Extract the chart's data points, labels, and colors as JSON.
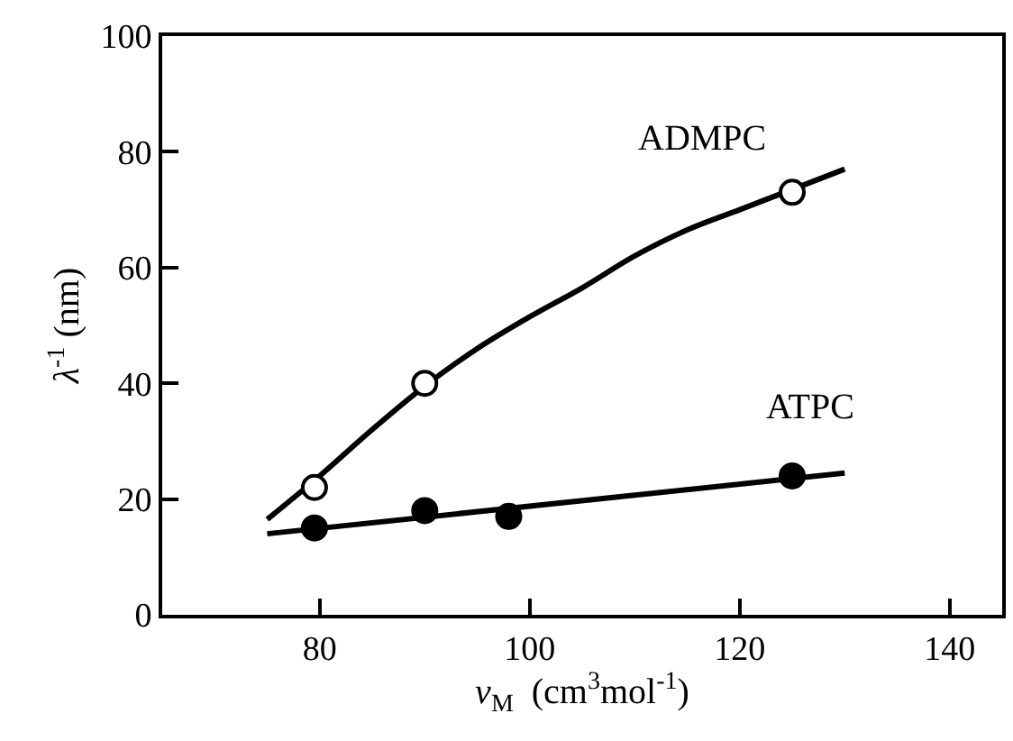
{
  "chart_data": {
    "type": "scatter",
    "xlabel": "v$_{M}$  (cm$^{3}$mol$^{-1}$)",
    "ylabel": "λ$^{-1}$ (nm)",
    "xlim": [
      65,
      145
    ],
    "xticks": [
      80,
      100,
      120,
      140
    ],
    "ylim": [
      0,
      100
    ],
    "yticks": [
      0,
      20,
      40,
      60,
      80,
      100
    ],
    "legend": false,
    "series": [
      {
        "type": "line",
        "marker": "none",
        "color": "#000000",
        "x": [
          75,
          80,
          85,
          90,
          95,
          100,
          105,
          110,
          115,
          120,
          125,
          130
        ],
        "values": [
          16.5,
          24,
          32,
          39.5,
          46,
          51.5,
          56.5,
          62,
          66.5,
          70,
          73.5,
          77
        ]
      },
      {
        "type": "line",
        "marker": "none",
        "color": "#000000",
        "x": [
          75,
          130
        ],
        "values": [
          14,
          24.5
        ]
      },
      {
        "marker": "circle",
        "name": "ADMPC",
        "color": "#ffffff",
        "x": [
          79.5,
          90,
          125
        ],
        "values": [
          22,
          40,
          73
        ]
      },
      {
        "marker": "circle",
        "name": "ATPC",
        "color": "#000000",
        "x": [
          79.5,
          90,
          98,
          125
        ],
        "values": [
          15,
          18,
          17,
          24
        ]
      }
    ]
  }
}
